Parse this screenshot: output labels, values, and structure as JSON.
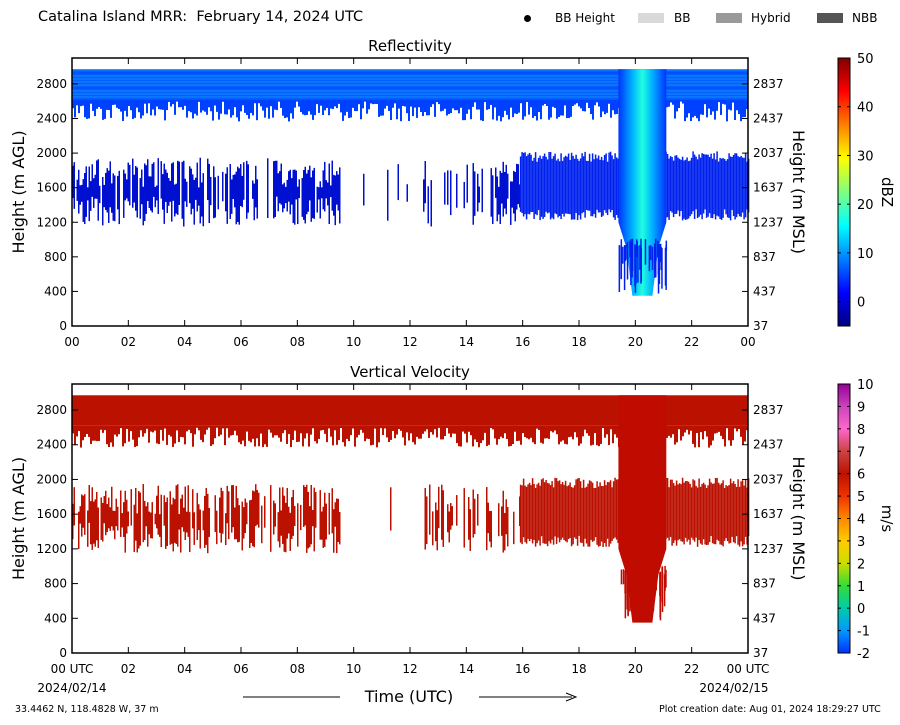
{
  "title": "Catalina Island MRR:  February 14, 2024 UTC",
  "legend": [
    {
      "label": "BB Height",
      "marker": "dot",
      "color": "#000000"
    },
    {
      "label": "BB",
      "marker": "swatch",
      "color": "#d9d9d9"
    },
    {
      "label": "Hybrid",
      "marker": "swatch",
      "color": "#9a9a9a"
    },
    {
      "label": "NBB",
      "marker": "swatch",
      "color": "#555555"
    }
  ],
  "footer": {
    "coordinates": "33.4462 N, 118.4828 W, 37 m",
    "creation_date": "Plot creation date: Aug 01, 2024 18:29:27 UTC"
  },
  "chart_data": [
    {
      "type": "heatmap",
      "title": "Reflectivity",
      "xlabel": "",
      "ylabel": "Height (m AGL)",
      "ylabel_right": "Height (m MSL)",
      "x_ticks": [
        "00",
        "02",
        "04",
        "06",
        "08",
        "10",
        "12",
        "14",
        "16",
        "18",
        "20",
        "22",
        "00"
      ],
      "xlim_hours": [
        0,
        24
      ],
      "y_ticks_left": [
        0,
        400,
        800,
        1200,
        1600,
        2000,
        2400,
        2800
      ],
      "y_ticks_right": [
        37,
        437,
        837,
        1237,
        1637,
        2037,
        2437,
        2837
      ],
      "ylim": [
        0,
        3100
      ],
      "colorbar": {
        "label": "dBZ",
        "range": [
          -5,
          50
        ],
        "ticks": [
          0,
          10,
          20,
          30,
          40,
          50
        ],
        "colors": [
          "#00007f",
          "#0000ff",
          "#007fff",
          "#00ffff",
          "#7fff7f",
          "#ffff00",
          "#ff7f00",
          "#ff0000",
          "#7f0000"
        ]
      },
      "regions": [
        {
          "name": "upper layer",
          "x_start": 0,
          "x_end": 24,
          "z_bottom": 2550,
          "z_top": 2970,
          "value": 3
        },
        {
          "name": "middle layer",
          "x_start": 0,
          "x_end": 15.9,
          "z_bottom": 1300,
          "z_top": 1950,
          "value": 0,
          "sparse": true
        },
        {
          "name": "middle layer dense",
          "x_start": 15.9,
          "x_end": 24,
          "z_bottom": 1250,
          "z_top": 1950,
          "value": 1
        },
        {
          "name": "precipitation column",
          "x_start": 19.4,
          "x_end": 21.1,
          "z_bottom": 350,
          "z_top": 2970,
          "value": 8
        }
      ]
    },
    {
      "type": "heatmap",
      "title": "Vertical Velocity",
      "xlabel": "Time (UTC)",
      "ylabel": "Height (m AGL)",
      "ylabel_right": "Height (m MSL)",
      "x_ticks": [
        "00 UTC",
        "02",
        "04",
        "06",
        "08",
        "10",
        "12",
        "14",
        "16",
        "18",
        "20",
        "22",
        "00 UTC"
      ],
      "x_subticks": {
        "first": "2024/02/14",
        "last": "2024/02/15"
      },
      "xlim_hours": [
        0,
        24
      ],
      "y_ticks_left": [
        0,
        400,
        800,
        1200,
        1600,
        2000,
        2400,
        2800
      ],
      "y_ticks_right": [
        37,
        437,
        837,
        1237,
        1637,
        2037,
        2437,
        2837
      ],
      "ylim": [
        0,
        3100
      ],
      "colorbar": {
        "label": "m/s",
        "range": [
          -2,
          10
        ],
        "ticks": [
          -2,
          -1,
          0,
          1,
          2,
          3,
          4,
          5,
          6,
          7,
          8,
          9,
          10
        ],
        "colors": [
          "#0033ff",
          "#0099ff",
          "#00ccaa",
          "#33dd33",
          "#ccdd00",
          "#ffcc00",
          "#ff8800",
          "#ee3300",
          "#bb1100",
          "#cc4444",
          "#ff66cc",
          "#cc44bb",
          "#990099"
        ]
      },
      "regions": [
        {
          "name": "upper layer",
          "x_start": 0,
          "x_end": 24,
          "z_bottom": 2550,
          "z_top": 2970,
          "value": 5.8
        },
        {
          "name": "middle layer",
          "x_start": 0,
          "x_end": 15.9,
          "z_bottom": 1300,
          "z_top": 1950,
          "value": 5.8,
          "sparse": true
        },
        {
          "name": "middle layer dense",
          "x_start": 15.9,
          "x_end": 24,
          "z_bottom": 1250,
          "z_top": 1950,
          "value": 5.8
        },
        {
          "name": "precipitation column",
          "x_start": 19.4,
          "x_end": 21.1,
          "z_bottom": 350,
          "z_top": 2970,
          "value": 5.8
        }
      ]
    }
  ]
}
